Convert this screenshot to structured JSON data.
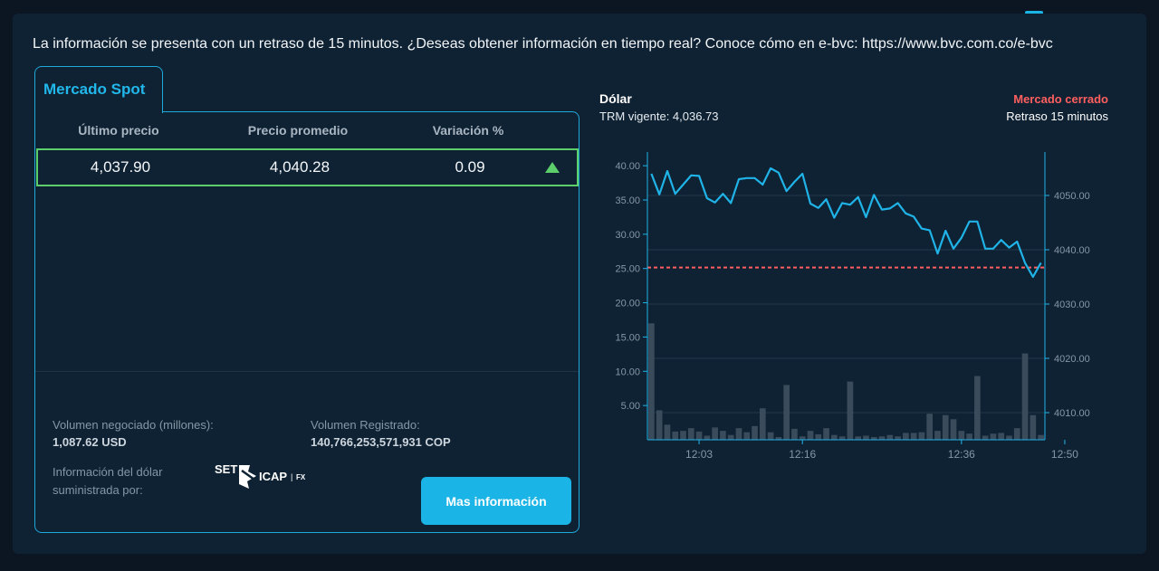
{
  "notice": "La información se presenta con un retraso de 15 minutos. ¿Deseas obtener información en tiempo real? Conoce cómo en e-bvc: https://www.bvc.com.co/e-bvc",
  "spot": {
    "tab_label": "Mercado Spot",
    "headers": [
      "Último precio",
      "Precio promedio",
      "Variación %"
    ],
    "last_price": "4,037.90",
    "avg_price": "4,040.28",
    "variation": "0.09",
    "variation_direction": "up",
    "volume_label": "Volumen negociado (millones):",
    "volume_value": "1,087.62 USD",
    "registered_label": "Volumen Registrado:",
    "registered_value": "140,766,253,571,931 COP",
    "provider_label": "Información del dólar suministrada por:",
    "provider_logo": {
      "part1": "SET",
      "part2": "ICAP",
      "part3": "FX"
    },
    "more_button": "Mas información"
  },
  "chart_header": {
    "title": "Dólar",
    "trm": "TRM vigente: 4,036.73",
    "market_status": "Mercado cerrado",
    "delay": "Retraso 15 minutos"
  },
  "colors": {
    "accent": "#1bb4e6",
    "up": "#5ccf6a",
    "closed": "#ff5f5f",
    "line": "#1fb3e8",
    "bars": "#3a4b5b",
    "trm_line": "#ff5f5f"
  },
  "chart_data": {
    "type": "line",
    "title": "Dólar",
    "x_ticks": [
      "12:03",
      "12:16",
      "12:36",
      "12:50"
    ],
    "x_tick_indices": [
      6,
      19,
      39,
      52
    ],
    "y_left_ticks": [
      "5.00",
      "10.00",
      "15.00",
      "20.00",
      "25.00",
      "30.00",
      "35.00",
      "40.00"
    ],
    "y_left_range": [
      0,
      42
    ],
    "y_right_ticks": [
      "4010.00",
      "4020.00",
      "4030.00",
      "4040.00",
      "4050.00"
    ],
    "y_right_range": [
      4005,
      4058
    ],
    "trm_reference": 4036.73,
    "grid": true,
    "series": [
      {
        "kind": "line",
        "axis": "right",
        "values": [
          4054.0,
          4050.2,
          4054.5,
          4050.3,
          4052.0,
          4053.7,
          4053.6,
          4049.5,
          4048.7,
          4050.3,
          4048.6,
          4053.0,
          4053.2,
          4053.2,
          4052.0,
          4055.0,
          4054.2,
          4050.8,
          4052.5,
          4054.0,
          4048.5,
          4047.7,
          4049.3,
          4045.9,
          4048.6,
          4048.3,
          4049.7,
          4046.0,
          4050.1,
          4047.4,
          4047.6,
          4048.6,
          4046.7,
          4046.1,
          4043.9,
          4043.6,
          4039.3,
          4043.5,
          4040.2,
          4042.2,
          4045.2,
          4045.2,
          4040.2,
          4040.2,
          4041.8,
          4040.4,
          4041.5,
          4037.6,
          4035.0,
          4037.6
        ]
      },
      {
        "kind": "bar",
        "axis": "left",
        "values": [
          17.0,
          4.3,
          2.2,
          1.2,
          1.3,
          1.7,
          1.2,
          0.6,
          1.8,
          1.3,
          0.7,
          1.7,
          1.1,
          2.0,
          4.6,
          1.1,
          0.4,
          8.0,
          1.6,
          0.5,
          1.3,
          0.8,
          1.7,
          0.7,
          0.5,
          8.5,
          0.5,
          0.6,
          0.4,
          0.5,
          0.7,
          0.5,
          1.0,
          1.0,
          1.1,
          3.8,
          1.3,
          3.6,
          3.0,
          1.3,
          0.9,
          9.3,
          0.6,
          0.9,
          1.0,
          0.6,
          1.7,
          12.6,
          3.6,
          0.7
        ]
      }
    ]
  }
}
